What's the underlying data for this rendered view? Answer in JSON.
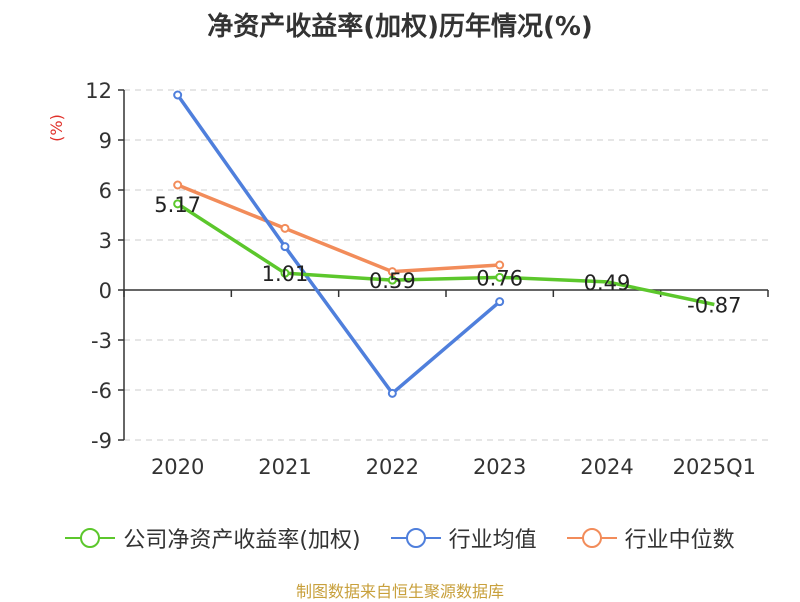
{
  "title": "净资产收益率(加权)历年情况(%)",
  "source": "制图数据来自恒生聚源数据库",
  "chart_data": {
    "type": "line",
    "title": "净资产收益率(加权)历年情况(%)",
    "ylabel": "(%)",
    "ylabel_color": "#e0302a",
    "categories": [
      "2020",
      "2021",
      "2022",
      "2023",
      "2024",
      "2025Q1"
    ],
    "ylim": [
      -9,
      12
    ],
    "yticks": [
      "12",
      "9",
      "6",
      "3",
      "0",
      "-3",
      "-6",
      "-9"
    ],
    "grid": true,
    "legend_position": "bottom",
    "series": [
      {
        "name": "公司净资产收益率(加权)",
        "color": "#5cc72c",
        "values": [
          5.17,
          1.01,
          0.59,
          0.76,
          0.49,
          -0.87
        ],
        "labels": [
          "5.17",
          "1.01",
          "0.59",
          "0.76",
          "0.49",
          "-0.87"
        ],
        "markers": [
          true,
          true,
          true,
          true,
          false,
          false
        ]
      },
      {
        "name": "行业均值",
        "color": "#4f7fdc",
        "values": [
          11.7,
          2.6,
          -6.2,
          -0.7,
          null,
          null
        ],
        "markers": [
          true,
          true,
          true,
          true,
          false,
          false
        ]
      },
      {
        "name": "行业中位数",
        "color": "#f28c5a",
        "values": [
          6.3,
          3.7,
          1.1,
          1.5,
          null,
          null
        ],
        "markers": [
          true,
          true,
          true,
          true,
          false,
          false
        ]
      }
    ]
  }
}
